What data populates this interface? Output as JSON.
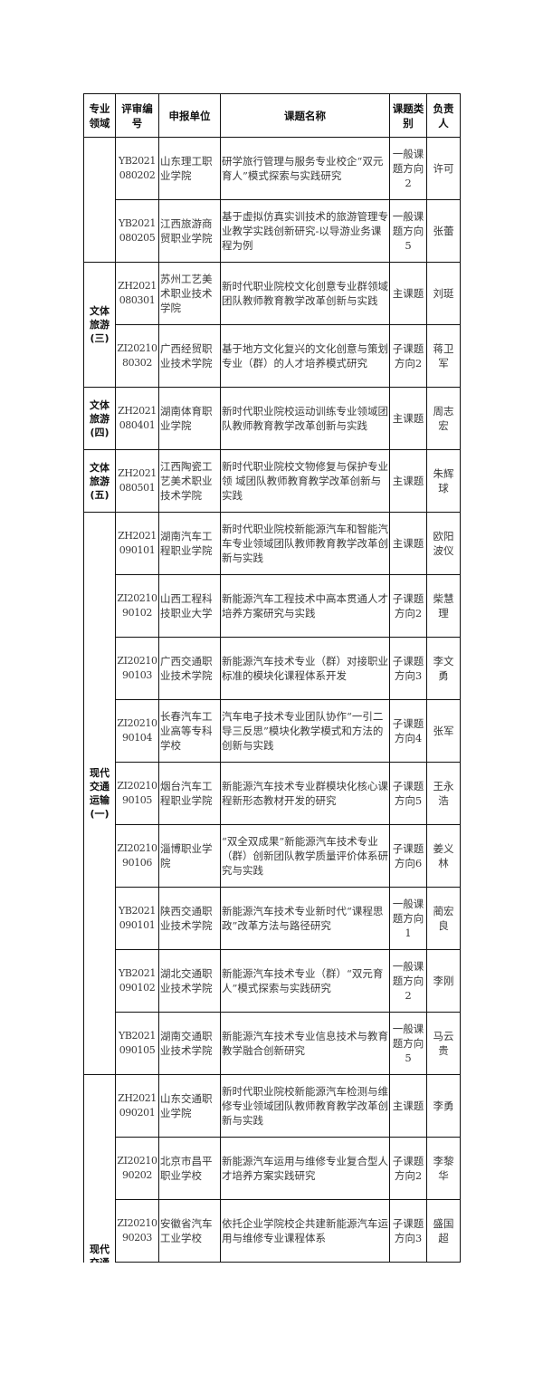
{
  "table": {
    "headers": [
      "专业领域",
      "评审编号",
      "申报单位",
      "课题名称",
      "课题类别",
      "负责人"
    ],
    "groups": [
      {
        "field": "",
        "rows": [
          {
            "code": "YB2021080202",
            "unit": "山东理工职业学院",
            "title": "研学旅行管理与服务专业校企“双元育人”模式探索与实践研究",
            "category": "一般课题方向2",
            "person": "许可"
          },
          {
            "code": "YB2021080205",
            "unit": "江西旅游商贸职业学院",
            "title": "基于虚拟仿真实训技术的旅游管理专业教学实践创新研究-以导游业务课程为例",
            "category": "一般课题方向5",
            "person": "张蕾"
          }
        ]
      },
      {
        "field": "文体旅游(三)",
        "rows": [
          {
            "code": "ZH2021080301",
            "unit": "苏州工艺美术职业技术学院",
            "title": "新时代职业院校文化创意专业群领域团队教师教育教学改革创新与实践",
            "category": "主课题",
            "person": "刘珽"
          },
          {
            "code": "ZI2021080302",
            "unit": "广西经贸职业技术学院",
            "title": "基于地方文化复兴的文化创意与策划专业（群）的人才培养模式研究",
            "category": "子课题方向2",
            "person": "蒋卫军"
          }
        ]
      },
      {
        "field": "文体旅游(四)",
        "rows": [
          {
            "code": "ZH2021080401",
            "unit": "湖南体育职业学院",
            "title": "新时代职业院校运动训练专业领域团队教师教育教学改革创新与实践",
            "category": "主课题",
            "person": "周志宏"
          }
        ]
      },
      {
        "field": "文体旅游(五)",
        "rows": [
          {
            "code": "ZH2021080501",
            "unit": "江西陶瓷工艺美术职业技术学院",
            "title": "新时代职业院校文物修复与保护专业领 域团队教师教育教学改革创新与实践",
            "category": "主课题",
            "person": "朱辉球"
          }
        ]
      },
      {
        "field": "现代交通运输(一)",
        "rows": [
          {
            "code": "ZH2021090101",
            "unit": "湖南汽车工程职业学院",
            "title": "新时代职业院校新能源汽车和智能汽车专业领域团队教师教育教学改革创新与实践",
            "category": "主课题",
            "person": "欧阳波仪"
          },
          {
            "code": "ZI2021090102",
            "unit": "山西工程科技职业大学",
            "title": "新能源汽车工程技术中高本贯通人才培养方案研究与实践",
            "category": "子课题方向2",
            "person": "柴慧理"
          },
          {
            "code": "ZI2021090103",
            "unit": "广西交通职业技术学院",
            "title": "新能源汽车技术专业（群）对接职业标准的模块化课程体系开发",
            "category": "子课题方向3",
            "person": "李文勇"
          },
          {
            "code": "ZI2021090104",
            "unit": "长春汽车工业高等专科学校",
            "title": "汽车电子技术专业团队协作“一引二导三反思”模块化教学模式和方法的创新与实践",
            "category": "子课题方向4",
            "person": "张军"
          },
          {
            "code": "ZI2021090105",
            "unit": "烟台汽车工程职业学院",
            "title": "新能源汽车技术专业群模块化核心课程新形态教材开发的研究",
            "category": "子课题方向5",
            "person": "王永浩"
          },
          {
            "code": "ZI2021090106",
            "unit": "淄博职业学院",
            "title": "“双全双成果”新能源汽车技术专业（群）创新团队教学质量评价体系研究与实践",
            "category": "子课题方向6",
            "person": "姜义林"
          },
          {
            "code": "YB2021090101",
            "unit": "陕西交通职业技术学院",
            "title": "新能源汽车技术专业新时代“课程思政”改革方法与路径研究",
            "category": "一般课题方向1",
            "person": "蔺宏良"
          },
          {
            "code": "YB2021090102",
            "unit": "湖北交通职业技术学院",
            "title": "新能源汽车技术专业（群）“双元育人”模式探索与实践研究",
            "category": "一般课题方向2",
            "person": "李刚"
          },
          {
            "code": "YB2021090105",
            "unit": "湖南交通职业技术学院",
            "title": "新能源汽车技术专业信息技术与教育教学融合创新研究",
            "category": "一般课题方向5",
            "person": "马云贵"
          }
        ]
      },
      {
        "field": "现代交通运输",
        "open": true,
        "rows": [
          {
            "code": "ZH2021090201",
            "unit": "山东交通职业学院",
            "title": "新时代职业院校新能源汽车检测与维修专业领域团队教师教育教学改革创新与实践",
            "category": "主课题",
            "person": "李勇"
          },
          {
            "code": "ZI2021090202",
            "unit": "北京市昌平职业学校",
            "title": "新能源汽车运用与维修专业复合型人才培养方案实践研究",
            "category": "子课题方向2",
            "person": "李黎华"
          },
          {
            "code": "ZI2021090203",
            "unit": "安徽省汽车工业学校",
            "title": "依托企业学院校企共建新能源汽车运用与维修专业课程体系",
            "category": "子课题方向3",
            "person": "盛国超"
          }
        ]
      }
    ]
  }
}
